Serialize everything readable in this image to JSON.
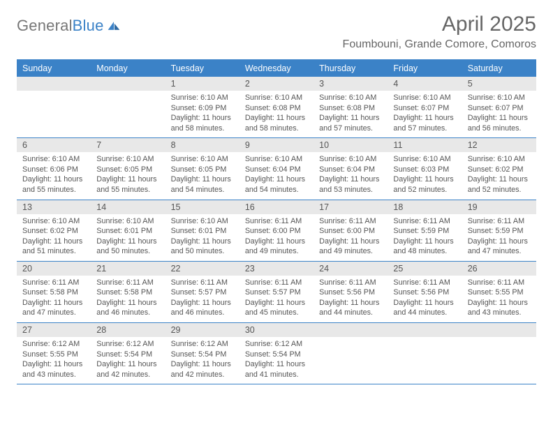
{
  "brand": {
    "word1": "General",
    "word2": "Blue"
  },
  "title": "April 2025",
  "location": "Foumbouni, Grande Comore, Comoros",
  "weekdays": [
    "Sunday",
    "Monday",
    "Tuesday",
    "Wednesday",
    "Thursday",
    "Friday",
    "Saturday"
  ],
  "colors": {
    "header_blue": "#3b82c7",
    "row_grey": "#e8e8e8",
    "text": "#555555",
    "background": "#ffffff"
  },
  "fonts": {
    "title_pt": 30,
    "location_pt": 16,
    "weekday_pt": 12.5,
    "cell_pt": 10.8
  },
  "calendar": {
    "first_weekday_index": 2,
    "days": [
      {
        "n": 1,
        "sunrise": "6:10 AM",
        "sunset": "6:09 PM",
        "daylight": "11 hours and 58 minutes."
      },
      {
        "n": 2,
        "sunrise": "6:10 AM",
        "sunset": "6:08 PM",
        "daylight": "11 hours and 58 minutes."
      },
      {
        "n": 3,
        "sunrise": "6:10 AM",
        "sunset": "6:08 PM",
        "daylight": "11 hours and 57 minutes."
      },
      {
        "n": 4,
        "sunrise": "6:10 AM",
        "sunset": "6:07 PM",
        "daylight": "11 hours and 57 minutes."
      },
      {
        "n": 5,
        "sunrise": "6:10 AM",
        "sunset": "6:07 PM",
        "daylight": "11 hours and 56 minutes."
      },
      {
        "n": 6,
        "sunrise": "6:10 AM",
        "sunset": "6:06 PM",
        "daylight": "11 hours and 55 minutes."
      },
      {
        "n": 7,
        "sunrise": "6:10 AM",
        "sunset": "6:05 PM",
        "daylight": "11 hours and 55 minutes."
      },
      {
        "n": 8,
        "sunrise": "6:10 AM",
        "sunset": "6:05 PM",
        "daylight": "11 hours and 54 minutes."
      },
      {
        "n": 9,
        "sunrise": "6:10 AM",
        "sunset": "6:04 PM",
        "daylight": "11 hours and 54 minutes."
      },
      {
        "n": 10,
        "sunrise": "6:10 AM",
        "sunset": "6:04 PM",
        "daylight": "11 hours and 53 minutes."
      },
      {
        "n": 11,
        "sunrise": "6:10 AM",
        "sunset": "6:03 PM",
        "daylight": "11 hours and 52 minutes."
      },
      {
        "n": 12,
        "sunrise": "6:10 AM",
        "sunset": "6:02 PM",
        "daylight": "11 hours and 52 minutes."
      },
      {
        "n": 13,
        "sunrise": "6:10 AM",
        "sunset": "6:02 PM",
        "daylight": "11 hours and 51 minutes."
      },
      {
        "n": 14,
        "sunrise": "6:10 AM",
        "sunset": "6:01 PM",
        "daylight": "11 hours and 50 minutes."
      },
      {
        "n": 15,
        "sunrise": "6:10 AM",
        "sunset": "6:01 PM",
        "daylight": "11 hours and 50 minutes."
      },
      {
        "n": 16,
        "sunrise": "6:11 AM",
        "sunset": "6:00 PM",
        "daylight": "11 hours and 49 minutes."
      },
      {
        "n": 17,
        "sunrise": "6:11 AM",
        "sunset": "6:00 PM",
        "daylight": "11 hours and 49 minutes."
      },
      {
        "n": 18,
        "sunrise": "6:11 AM",
        "sunset": "5:59 PM",
        "daylight": "11 hours and 48 minutes."
      },
      {
        "n": 19,
        "sunrise": "6:11 AM",
        "sunset": "5:59 PM",
        "daylight": "11 hours and 47 minutes."
      },
      {
        "n": 20,
        "sunrise": "6:11 AM",
        "sunset": "5:58 PM",
        "daylight": "11 hours and 47 minutes."
      },
      {
        "n": 21,
        "sunrise": "6:11 AM",
        "sunset": "5:58 PM",
        "daylight": "11 hours and 46 minutes."
      },
      {
        "n": 22,
        "sunrise": "6:11 AM",
        "sunset": "5:57 PM",
        "daylight": "11 hours and 46 minutes."
      },
      {
        "n": 23,
        "sunrise": "6:11 AM",
        "sunset": "5:57 PM",
        "daylight": "11 hours and 45 minutes."
      },
      {
        "n": 24,
        "sunrise": "6:11 AM",
        "sunset": "5:56 PM",
        "daylight": "11 hours and 44 minutes."
      },
      {
        "n": 25,
        "sunrise": "6:11 AM",
        "sunset": "5:56 PM",
        "daylight": "11 hours and 44 minutes."
      },
      {
        "n": 26,
        "sunrise": "6:11 AM",
        "sunset": "5:55 PM",
        "daylight": "11 hours and 43 minutes."
      },
      {
        "n": 27,
        "sunrise": "6:12 AM",
        "sunset": "5:55 PM",
        "daylight": "11 hours and 43 minutes."
      },
      {
        "n": 28,
        "sunrise": "6:12 AM",
        "sunset": "5:54 PM",
        "daylight": "11 hours and 42 minutes."
      },
      {
        "n": 29,
        "sunrise": "6:12 AM",
        "sunset": "5:54 PM",
        "daylight": "11 hours and 42 minutes."
      },
      {
        "n": 30,
        "sunrise": "6:12 AM",
        "sunset": "5:54 PM",
        "daylight": "11 hours and 41 minutes."
      }
    ]
  },
  "labels": {
    "sunrise": "Sunrise:",
    "sunset": "Sunset:",
    "daylight": "Daylight:"
  }
}
